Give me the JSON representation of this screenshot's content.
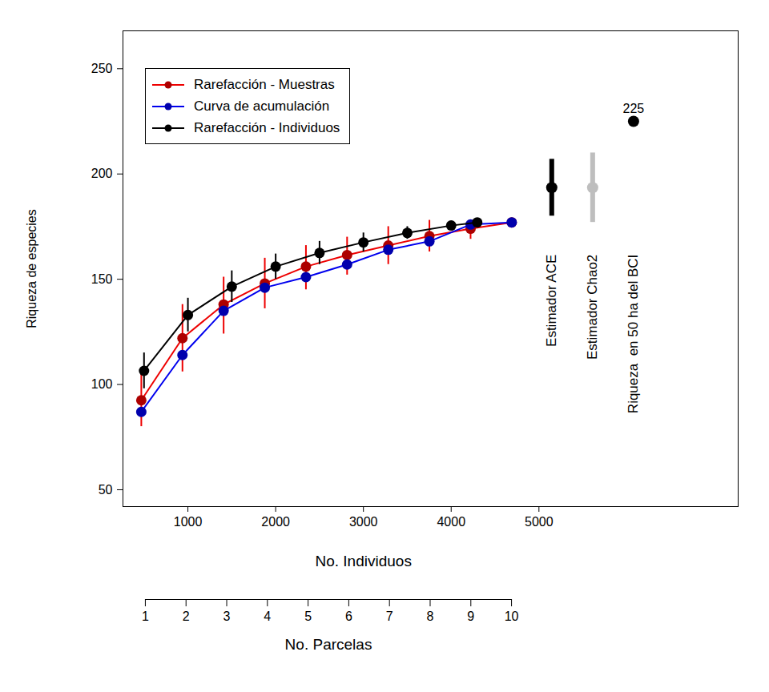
{
  "chart_data": {
    "type": "line",
    "xlabel": "No. Individuos",
    "ylabel": "Riqueza de especies",
    "xlim": [
      260,
      7270
    ],
    "ylim": [
      42,
      268
    ],
    "xticks": [
      1000,
      2000,
      3000,
      4000,
      5000
    ],
    "yticks": [
      50,
      100,
      150,
      200,
      250
    ],
    "x2label": "No. Parcelas",
    "x2lim": [
      0.45,
      15.57
    ],
    "x2ticks": [
      1,
      2,
      3,
      4,
      5,
      6,
      7,
      8,
      9,
      10
    ],
    "legend": "top-left",
    "marker": "circle",
    "series": [
      {
        "name": "Rarefacción - Muestras",
        "color": "#ee0000",
        "x": [
          469,
          938,
          1407,
          1876,
          2345,
          2814,
          3283,
          3752,
          4221,
          4690
        ],
        "values": [
          92.5,
          122,
          138,
          148,
          156,
          161.5,
          166,
          170.5,
          174,
          177
        ],
        "lower": [
          80,
          106,
          124,
          136,
          145,
          152,
          157,
          163,
          169,
          177
        ],
        "upper": [
          106,
          138,
          151,
          160,
          166,
          170,
          175,
          178,
          178,
          177
        ]
      },
      {
        "name": "Curva de acumulación",
        "color": "#0000ee",
        "x": [
          469,
          938,
          1407,
          1876,
          2345,
          2814,
          3283,
          3752,
          4221,
          4690
        ],
        "values": [
          87,
          114,
          135,
          146,
          151,
          157,
          164,
          168,
          176,
          177
        ]
      },
      {
        "name": "Rarefacción - Individuos",
        "color": "#000000",
        "x": [
          500,
          1000,
          1500,
          2000,
          2500,
          3000,
          3500,
          4000,
          4297
        ],
        "values": [
          106.5,
          133,
          146.5,
          156,
          162.5,
          167.5,
          172,
          175.5,
          177
        ],
        "lower": [
          98,
          125,
          139,
          150,
          157,
          163,
          169,
          174,
          177
        ],
        "upper": [
          115,
          141,
          154,
          162,
          168,
          172,
          175,
          177,
          177
        ]
      }
    ],
    "estimates": [
      {
        "name": "Estimador ACE",
        "color": "#000000",
        "x": 5146,
        "value": 193.5,
        "lower": 180,
        "upper": 207
      },
      {
        "name": "Estimador Chao2",
        "color": "#bebebe",
        "x": 5612,
        "value": 193.5,
        "lower": 177,
        "upper": 210
      },
      {
        "name": "Riqueza  en 50 ha del BCI",
        "color": "#000000",
        "x": 6078,
        "value": 225,
        "data_labels": true
      }
    ]
  }
}
